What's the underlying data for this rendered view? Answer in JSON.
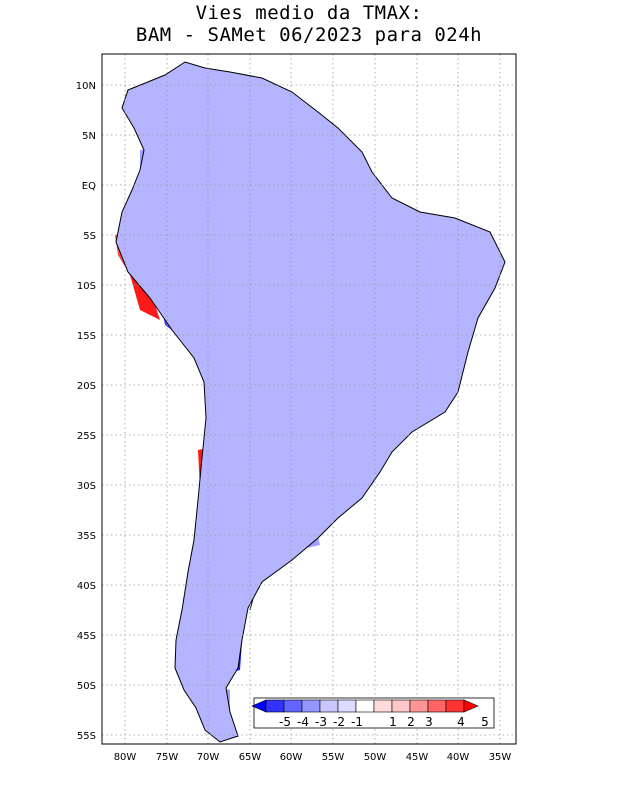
{
  "title": {
    "line1": "Vies medio da TMAX:",
    "line2": "BAM - SAMet 06/2023  para 024h"
  },
  "map": {
    "region": "South America",
    "lat_labels": [
      "10N",
      "5N",
      "EQ",
      "5S",
      "10S",
      "15S",
      "20S",
      "25S",
      "30S",
      "35S",
      "40S",
      "45S",
      "50S",
      "55S"
    ],
    "lon_labels": [
      "80W",
      "75W",
      "70W",
      "65W",
      "60W",
      "55W",
      "50W",
      "45W",
      "40W",
      "35W"
    ],
    "lon_range": [
      -84,
      -34
    ],
    "lat_range": [
      -56,
      14
    ],
    "grid": "dotted"
  },
  "colorbar": {
    "labels": [
      "-5",
      "-4",
      "-3",
      "-2",
      "-1",
      "1",
      "2",
      "3",
      "4",
      "5"
    ],
    "colors": [
      "#0000ff",
      "#3232ff",
      "#6464ff",
      "#9696ff",
      "#c8c8ff",
      "#dcdcff",
      "#ffffff",
      "#ffdcdc",
      "#ffc8c8",
      "#ff9696",
      "#ff6464",
      "#ff3232",
      "#ff0000"
    ]
  },
  "palette": {
    "land_base": "#b4b4ff",
    "ocean": "#ffffff",
    "border": "#000000"
  }
}
